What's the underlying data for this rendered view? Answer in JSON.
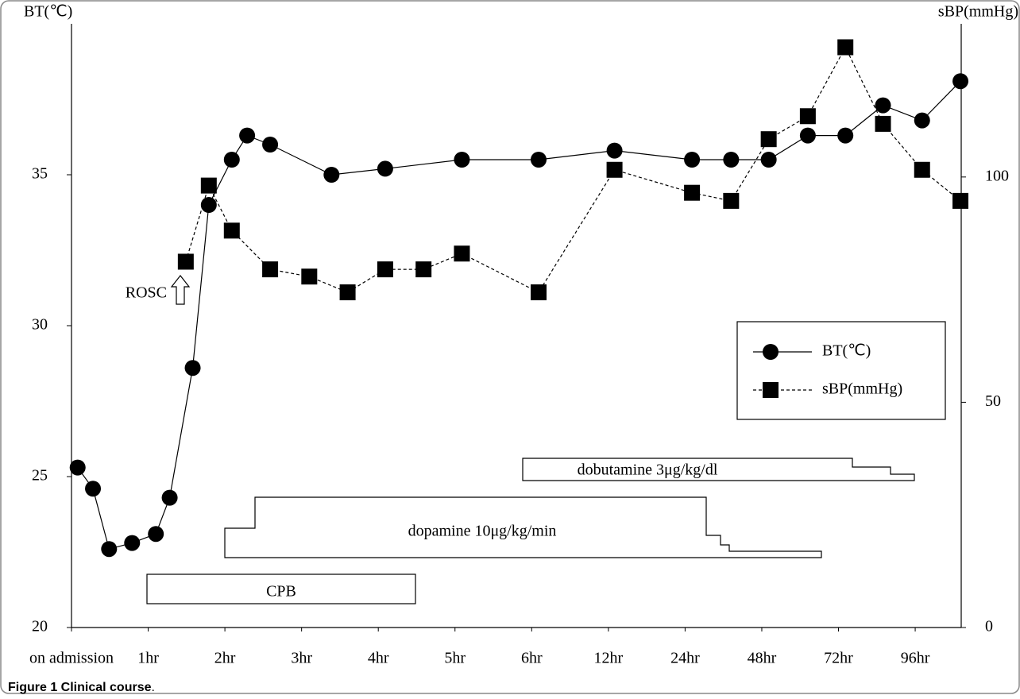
{
  "chart_data": {
    "type": "line",
    "ylabel": "BT(℃)",
    "y2label": "sBP(mmHg)",
    "xlim": [
      0,
      11.6
    ],
    "xticks": [
      {
        "value": 0,
        "label": "on admission"
      },
      {
        "value": 1,
        "label": "1hr"
      },
      {
        "value": 2,
        "label": "2hr"
      },
      {
        "value": 3,
        "label": "3hr"
      },
      {
        "value": 4,
        "label": "4hr"
      },
      {
        "value": 5,
        "label": "5hr"
      },
      {
        "value": 6,
        "label": "6hr"
      },
      {
        "value": 7,
        "label": "12hr"
      },
      {
        "value": 8,
        "label": "24hr"
      },
      {
        "value": 9,
        "label": "48hr"
      },
      {
        "value": 10,
        "label": "72hr"
      },
      {
        "value": 11,
        "label": "96hr"
      }
    ],
    "ylim": [
      20,
      40
    ],
    "yticks": [
      20,
      25,
      30,
      35
    ],
    "y2lim": [
      0,
      134
    ],
    "y2ticks": [
      0,
      50,
      100
    ],
    "series": [
      {
        "name": "BT(℃)",
        "color": "#000000",
        "marker": "circle",
        "line_style": "solid",
        "x": [
          0.08,
          0.28,
          0.49,
          0.79,
          1.1,
          1.28,
          1.58,
          1.79,
          2.09,
          2.29,
          2.59,
          3.39,
          4.09,
          5.09,
          6.09,
          7.08,
          8.09,
          8.6,
          9.09,
          9.6,
          10.09,
          10.58,
          11.09,
          11.59
        ],
        "values": [
          25.3,
          24.6,
          22.6,
          22.8,
          23.1,
          24.3,
          28.6,
          34.0,
          35.5,
          36.3,
          36.0,
          35.0,
          35.2,
          35.5,
          35.5,
          35.8,
          35.5,
          35.5,
          35.5,
          36.3,
          36.3,
          37.3,
          36.8,
          38.1
        ]
      },
      {
        "name": "sBP(mmHg)",
        "color": "#000000",
        "marker": "square",
        "line_style": "dashed",
        "axis": "y2",
        "x": [
          1.49,
          1.79,
          2.09,
          2.59,
          3.1,
          3.6,
          4.09,
          4.59,
          5.09,
          6.09,
          7.08,
          8.09,
          8.6,
          9.09,
          9.6,
          10.09,
          10.58,
          11.09,
          11.59
        ],
        "values": [
          81.2,
          98.1,
          88.1,
          79.5,
          77.9,
          74.4,
          79.5,
          79.5,
          83.0,
          74.4,
          101.6,
          96.5,
          94.7,
          108.4,
          113.5,
          128.8,
          111.8,
          101.6,
          94.7
        ]
      }
    ],
    "annotations": [
      "ROSC",
      "CPB",
      "dopamine 10μg/kg/min",
      "dobutamine 3μg/kg/dl"
    ]
  },
  "caption": {
    "label": "Figure 1 Clinical course",
    "end": "."
  }
}
